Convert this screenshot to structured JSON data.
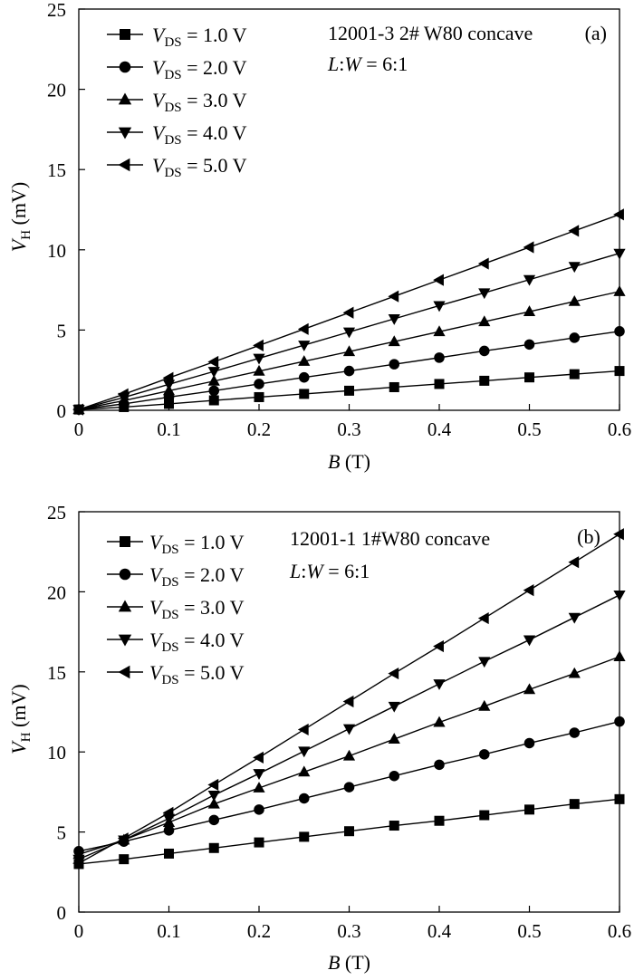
{
  "chart_data": [
    {
      "type": "line",
      "panel_label": "(a)",
      "annotation_lines": [
        "12001-3 2# W80 concave",
        "L:W = 6:1"
      ],
      "xlabel": "B (T)",
      "ylabel": "VH (mV)",
      "xlim": [
        0,
        0.6
      ],
      "ylim": [
        0,
        25
      ],
      "xticks": [
        "0",
        "0.1",
        "0.2",
        "0.3",
        "0.4",
        "0.5",
        "0.6"
      ],
      "yticks": [
        "0",
        "5",
        "10",
        "15",
        "20",
        "25"
      ],
      "legend_position": "top-left",
      "grid": false,
      "x": [
        0,
        0.05,
        0.1,
        0.15,
        0.2,
        0.25,
        0.3,
        0.35,
        0.4,
        0.45,
        0.5,
        0.55,
        0.6
      ],
      "series": [
        {
          "name": "VDS = 1.0 V",
          "marker": "square",
          "values": [
            0.05,
            0.2,
            0.4,
            0.62,
            0.82,
            1.02,
            1.22,
            1.44,
            1.64,
            1.84,
            2.05,
            2.25,
            2.45
          ]
        },
        {
          "name": "VDS = 2.0 V",
          "marker": "circle",
          "values": [
            0.05,
            0.4,
            0.82,
            1.22,
            1.64,
            2.05,
            2.45,
            2.87,
            3.28,
            3.7,
            4.1,
            4.52,
            4.92
          ]
        },
        {
          "name": "VDS = 3.0 V",
          "marker": "triangle-up",
          "values": [
            0.05,
            0.6,
            1.22,
            1.82,
            2.44,
            3.05,
            3.66,
            4.28,
            4.9,
            5.52,
            6.15,
            6.78,
            7.4
          ]
        },
        {
          "name": "VDS = 4.0 V",
          "marker": "triangle-down",
          "values": [
            0.05,
            0.8,
            1.62,
            2.42,
            3.24,
            4.06,
            4.88,
            5.7,
            6.52,
            7.32,
            8.14,
            8.96,
            9.78
          ]
        },
        {
          "name": "VDS = 5.0 V",
          "marker": "triangle-left",
          "values": [
            0.05,
            1.0,
            2.02,
            3.02,
            4.04,
            5.06,
            6.08,
            7.1,
            8.12,
            9.14,
            10.16,
            11.18,
            12.2
          ]
        }
      ]
    },
    {
      "type": "line",
      "panel_label": "(b)",
      "annotation_lines": [
        "12001-1 1#W80 concave",
        "L:W = 6:1"
      ],
      "xlabel": "B (T)",
      "ylabel": "VH (mV)",
      "xlim": [
        0,
        0.6
      ],
      "ylim": [
        0,
        25
      ],
      "xticks": [
        "0",
        "0.1",
        "0.2",
        "0.3",
        "0.4",
        "0.5",
        "0.6"
      ],
      "yticks": [
        "0",
        "5",
        "10",
        "15",
        "20",
        "25"
      ],
      "legend_position": "top-left",
      "grid": false,
      "x": [
        0,
        0.05,
        0.1,
        0.15,
        0.2,
        0.25,
        0.3,
        0.35,
        0.4,
        0.45,
        0.5,
        0.55,
        0.6
      ],
      "series": [
        {
          "name": "VDS = 1.0 V",
          "marker": "square",
          "values": [
            3.0,
            3.3,
            3.65,
            4.0,
            4.35,
            4.7,
            5.05,
            5.4,
            5.7,
            6.05,
            6.4,
            6.75,
            7.05
          ]
        },
        {
          "name": "VDS = 2.0 V",
          "marker": "circle",
          "values": [
            3.8,
            4.4,
            5.1,
            5.75,
            6.4,
            7.1,
            7.8,
            8.5,
            9.2,
            9.85,
            10.55,
            11.2,
            11.9
          ]
        },
        {
          "name": "VDS = 3.0 V",
          "marker": "triangle-up",
          "values": [
            3.6,
            4.5,
            5.6,
            6.75,
            7.75,
            8.75,
            9.75,
            10.8,
            11.85,
            12.85,
            13.9,
            14.9,
            15.95
          ]
        },
        {
          "name": "VDS = 4.0 V",
          "marker": "triangle-down",
          "values": [
            3.3,
            4.5,
            5.85,
            7.3,
            8.65,
            10.05,
            11.45,
            12.85,
            14.25,
            15.65,
            17.0,
            18.4,
            19.8
          ]
        },
        {
          "name": "VDS = 5.0 V",
          "marker": "triangle-left",
          "values": [
            3.05,
            4.6,
            6.2,
            7.95,
            9.65,
            11.4,
            13.15,
            14.9,
            16.6,
            18.35,
            20.1,
            21.85,
            23.6
          ]
        }
      ]
    }
  ]
}
